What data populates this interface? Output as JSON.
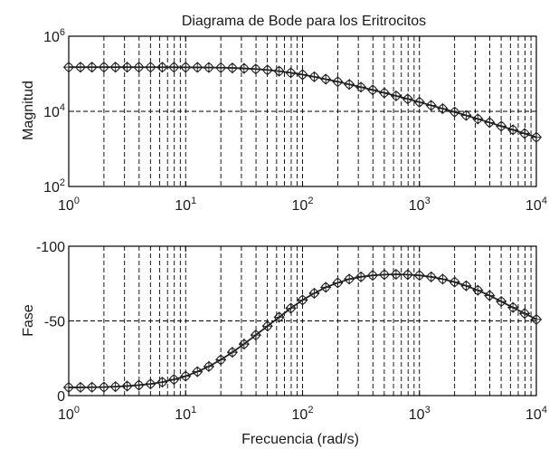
{
  "chart_data": [
    {
      "type": "line",
      "title": "Diagrama de Bode para los Eritrocitos",
      "xlabel": "",
      "ylabel": "Magnitud",
      "xscale": "log",
      "yscale": "log",
      "xlim": [
        1,
        10000
      ],
      "ylim": [
        100,
        1000000
      ],
      "x_ticks": [
        1,
        10,
        100,
        1000,
        10000
      ],
      "x_tick_labels": [
        {
          "base": "10",
          "exp": "0"
        },
        {
          "base": "10",
          "exp": "1"
        },
        {
          "base": "10",
          "exp": "2"
        },
        {
          "base": "10",
          "exp": "3"
        },
        {
          "base": "10",
          "exp": "4"
        }
      ],
      "y_ticks": [
        100,
        10000,
        1000000
      ],
      "y_tick_labels": [
        {
          "base": "10",
          "exp": "2"
        },
        {
          "base": "10",
          "exp": "4"
        },
        {
          "base": "10",
          "exp": "6"
        }
      ],
      "grid": true,
      "markers": "diamond, circle and cross overlaid",
      "x": [
        1,
        1.26,
        1.58,
        2,
        2.51,
        3.16,
        3.98,
        5.01,
        6.31,
        7.94,
        10,
        12.6,
        15.8,
        20,
        25.1,
        31.6,
        39.8,
        50.1,
        63.1,
        79.4,
        100,
        126,
        158,
        200,
        251,
        316,
        398,
        501,
        631,
        794,
        1000,
        1260,
        1580,
        2000,
        2510,
        3160,
        3980,
        5010,
        6310,
        7940,
        10000
      ],
      "y": [
        150000,
        150000,
        150000,
        150000,
        150000,
        150000,
        149800,
        149700,
        149500,
        149200,
        148800,
        148100,
        147000,
        145300,
        142800,
        139000,
        133600,
        126400,
        117200,
        106400,
        94900,
        83100,
        71900,
        61500,
        52200,
        44100,
        37100,
        31000,
        25800,
        21400,
        17600,
        14400,
        11800,
        9590,
        7780,
        6280,
        5050,
        4040,
        3230,
        2570,
        2040
      ]
    },
    {
      "type": "line",
      "title": "",
      "xlabel": "Frecuencia (rad/s)",
      "ylabel": "Fase",
      "xscale": "log",
      "xlim": [
        1,
        10000
      ],
      "ylim": [
        0,
        -100
      ],
      "y_reversed": true,
      "x_ticks": [
        1,
        10,
        100,
        1000,
        10000
      ],
      "x_tick_labels": [
        {
          "base": "10",
          "exp": "0"
        },
        {
          "base": "10",
          "exp": "1"
        },
        {
          "base": "10",
          "exp": "2"
        },
        {
          "base": "10",
          "exp": "3"
        },
        {
          "base": "10",
          "exp": "4"
        }
      ],
      "y_ticks": [
        -100,
        -50,
        0
      ],
      "y_tick_labels": [
        "-100",
        "-50",
        "0"
      ],
      "grid": true,
      "markers": "diamond, circle and cross overlaid",
      "x": [
        1,
        1.26,
        1.58,
        2,
        2.51,
        3.16,
        3.98,
        5.01,
        6.31,
        7.94,
        10,
        12.6,
        15.8,
        20,
        25.1,
        31.6,
        39.8,
        50.1,
        63.1,
        79.4,
        100,
        126,
        158,
        200,
        251,
        316,
        398,
        501,
        631,
        794,
        1000,
        1260,
        1580,
        2000,
        2510,
        3160,
        3980,
        5010,
        6310,
        7940,
        10000
      ],
      "y": [
        -5.5,
        -5.5,
        -5.6,
        -5.7,
        -6,
        -6.4,
        -7,
        -7.8,
        -9,
        -10.8,
        -13,
        -16,
        -19.5,
        -24,
        -29,
        -34.5,
        -40.5,
        -46.5,
        -52.5,
        -58.5,
        -64,
        -68.5,
        -72.5,
        -75.5,
        -78,
        -79.5,
        -80.5,
        -81,
        -81.2,
        -81,
        -80.5,
        -79.5,
        -78,
        -76,
        -73.5,
        -70.5,
        -67,
        -63,
        -59,
        -55,
        -51
      ]
    }
  ]
}
